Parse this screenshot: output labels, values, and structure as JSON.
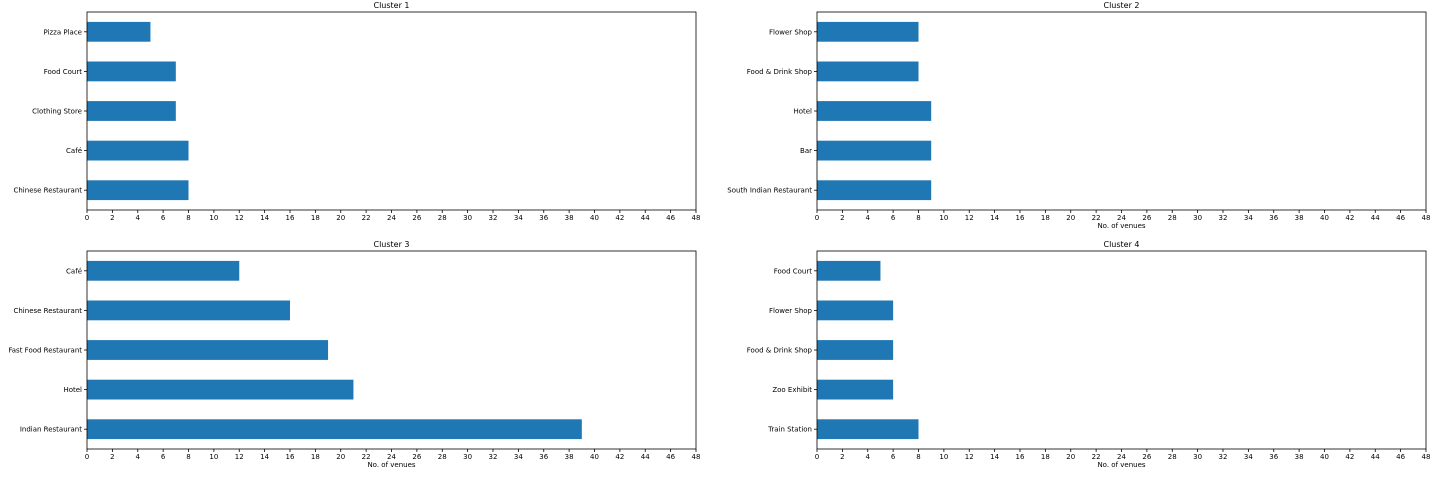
{
  "chart_data": [
    {
      "type": "bar",
      "orientation": "horizontal",
      "title": "Cluster 1",
      "xlabel": "",
      "ylabel": "",
      "categories": [
        "Pizza Place",
        "Food Court",
        "Clothing Store",
        "Café",
        "Chinese Restaurant"
      ],
      "values": [
        5,
        7,
        7,
        8,
        8
      ],
      "xlim": [
        0,
        48
      ],
      "xticks": [
        0,
        2,
        4,
        6,
        8,
        10,
        12,
        14,
        16,
        18,
        20,
        22,
        24,
        26,
        28,
        30,
        32,
        34,
        36,
        38,
        40,
        42,
        44,
        46,
        48
      ],
      "grid": false,
      "bar_color": "#1f77b4"
    },
    {
      "type": "bar",
      "orientation": "horizontal",
      "title": "Cluster 2",
      "xlabel": "No. of venues",
      "ylabel": "",
      "categories": [
        "Flower Shop",
        "Food & Drink Shop",
        "Hotel",
        "Bar",
        "South Indian Restaurant"
      ],
      "values": [
        8,
        8,
        9,
        9,
        9
      ],
      "xlim": [
        0,
        48
      ],
      "xticks": [
        0,
        2,
        4,
        6,
        8,
        10,
        12,
        14,
        16,
        18,
        20,
        22,
        24,
        26,
        28,
        30,
        32,
        34,
        36,
        38,
        40,
        42,
        44,
        46,
        48
      ],
      "grid": false,
      "bar_color": "#1f77b4"
    },
    {
      "type": "bar",
      "orientation": "horizontal",
      "title": "Cluster 3",
      "xlabel": "No. of venues",
      "ylabel": "",
      "categories": [
        "Café",
        "Chinese Restaurant",
        "Fast Food Restaurant",
        "Hotel",
        "Indian Restaurant"
      ],
      "values": [
        12,
        16,
        19,
        21,
        39
      ],
      "xlim": [
        0,
        48
      ],
      "xticks": [
        0,
        2,
        4,
        6,
        8,
        10,
        12,
        14,
        16,
        18,
        20,
        22,
        24,
        26,
        28,
        30,
        32,
        34,
        36,
        38,
        40,
        42,
        44,
        46,
        48
      ],
      "grid": false,
      "bar_color": "#1f77b4"
    },
    {
      "type": "bar",
      "orientation": "horizontal",
      "title": "Cluster 4",
      "xlabel": "No. of venues",
      "ylabel": "",
      "categories": [
        "Food Court",
        "Flower Shop",
        "Food & Drink Shop",
        "Zoo Exhibit",
        "Train Station"
      ],
      "values": [
        5,
        6,
        6,
        6,
        8
      ],
      "xlim": [
        0,
        48
      ],
      "xticks": [
        0,
        2,
        4,
        6,
        8,
        10,
        12,
        14,
        16,
        18,
        20,
        22,
        24,
        26,
        28,
        30,
        32,
        34,
        36,
        38,
        40,
        42,
        44,
        46,
        48
      ],
      "grid": false,
      "bar_color": "#1f77b4"
    }
  ]
}
